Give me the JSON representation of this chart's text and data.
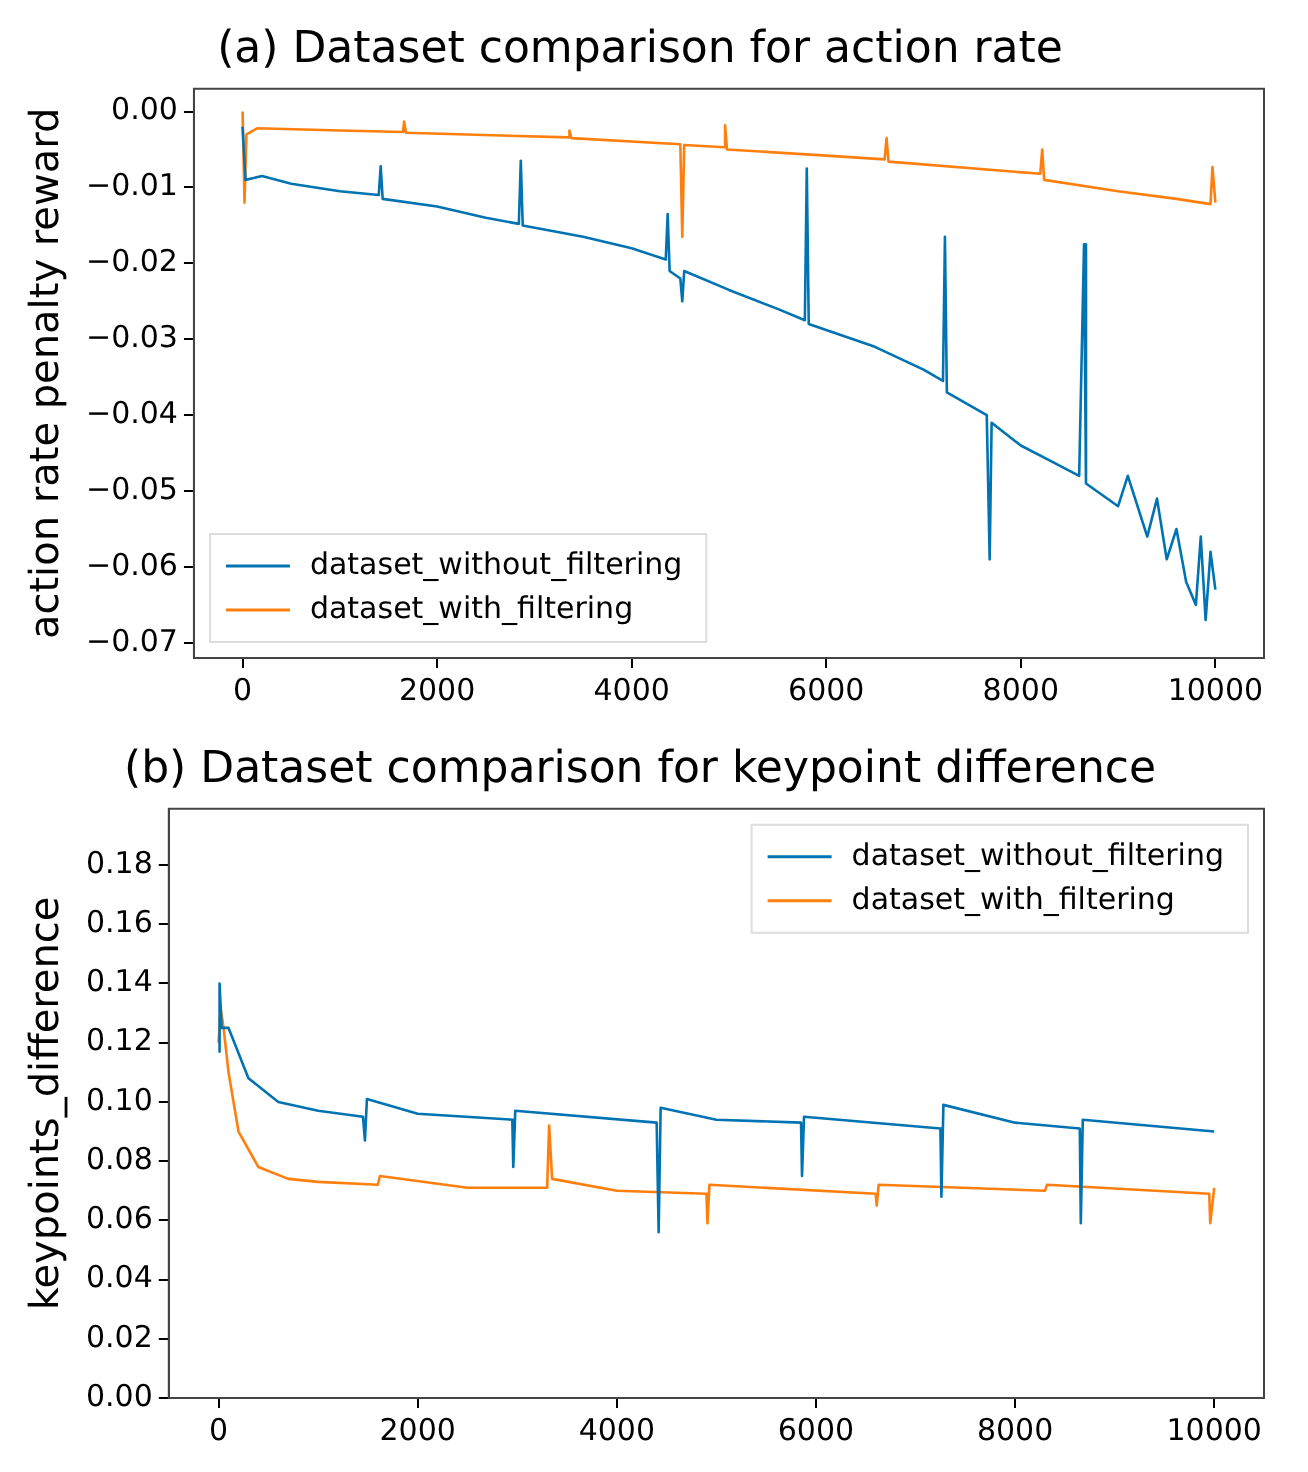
{
  "chart_data": [
    {
      "type": "line",
      "title": "(a) Dataset comparison for action rate",
      "ylabel": "action rate penalty reward",
      "xlim": [
        -500,
        10500
      ],
      "xticks": [
        0,
        2000,
        4000,
        6000,
        8000,
        10000
      ],
      "ylim": [
        -0.072,
        0.003
      ],
      "yticks": [
        {
          "value": -0.07,
          "label": "−0.07"
        },
        {
          "value": -0.06,
          "label": "−0.06"
        },
        {
          "value": -0.05,
          "label": "−0.05"
        },
        {
          "value": -0.04,
          "label": "−0.04"
        },
        {
          "value": -0.03,
          "label": "−0.03"
        },
        {
          "value": -0.02,
          "label": "−0.02"
        },
        {
          "value": -0.01,
          "label": "−0.01"
        },
        {
          "value": 0,
          "label": "0.00"
        }
      ],
      "grid": false,
      "legend": "bottom left",
      "series": [
        {
          "name": "dataset_without_filtering",
          "color": "#0173b2",
          "x": [
            0,
            30,
            200,
            500,
            1000,
            1400,
            1420,
            1440,
            2000,
            2500,
            2840,
            2860,
            2880,
            3500,
            4000,
            4350,
            4370,
            4390,
            4500,
            4520,
            4540,
            5000,
            5500,
            5780,
            5800,
            5820,
            6500,
            7000,
            7200,
            7220,
            7240,
            7650,
            7680,
            7700,
            8000,
            8300,
            8600,
            8650,
            8670,
            9000,
            9100,
            9300,
            9400,
            9500,
            9600,
            9700,
            9800,
            9850,
            9900,
            9950,
            10000
          ],
          "values": [
            -0.002,
            -0.009,
            -0.0085,
            -0.0095,
            -0.0105,
            -0.011,
            -0.0072,
            -0.0115,
            -0.0125,
            -0.014,
            -0.0148,
            -0.0065,
            -0.015,
            -0.0165,
            -0.018,
            -0.0195,
            -0.0135,
            -0.021,
            -0.022,
            -0.025,
            -0.021,
            -0.0235,
            -0.026,
            -0.0275,
            -0.0075,
            -0.028,
            -0.031,
            -0.034,
            -0.0355,
            -0.0165,
            -0.037,
            -0.04,
            -0.059,
            -0.041,
            -0.044,
            -0.046,
            -0.048,
            -0.0175,
            -0.049,
            -0.052,
            -0.048,
            -0.056,
            -0.051,
            -0.059,
            -0.055,
            -0.062,
            -0.065,
            -0.056,
            -0.067,
            -0.058,
            -0.063
          ]
        },
        {
          "name": "dataset_with_filtering",
          "color": "#ff7f0e",
          "x": [
            0,
            20,
            40,
            150,
            1000,
            1650,
            1660,
            1680,
            3350,
            3360,
            3380,
            4500,
            4520,
            4540,
            4950,
            4960,
            4980,
            6000,
            6600,
            6620,
            6640,
            8200,
            8220,
            8240,
            9000,
            9600,
            9950,
            9970,
            10000
          ],
          "values": [
            0.0,
            -0.012,
            -0.003,
            -0.0022,
            -0.0025,
            -0.0027,
            -0.0013,
            -0.0028,
            -0.0034,
            -0.0025,
            -0.0035,
            -0.0043,
            -0.0165,
            -0.0044,
            -0.0047,
            -0.0018,
            -0.005,
            -0.0058,
            -0.0063,
            -0.0035,
            -0.0066,
            -0.0082,
            -0.005,
            -0.009,
            -0.0105,
            -0.0115,
            -0.0122,
            -0.0073,
            -0.012
          ]
        }
      ]
    },
    {
      "type": "line",
      "title": "(b) Dataset comparison for keypoint difference",
      "ylabel": "keypoints_difference",
      "xlim": [
        -500,
        10500
      ],
      "xticks": [
        0,
        2000,
        4000,
        6000,
        8000,
        10000
      ],
      "ylim": [
        0,
        0.199
      ],
      "yticks": [
        {
          "value": 0,
          "label": "0.00"
        },
        {
          "value": 0.02,
          "label": "0.02"
        },
        {
          "value": 0.04,
          "label": "0.04"
        },
        {
          "value": 0.06,
          "label": "0.06"
        },
        {
          "value": 0.08,
          "label": "0.08"
        },
        {
          "value": 0.1,
          "label": "0.10"
        },
        {
          "value": 0.12,
          "label": "0.12"
        },
        {
          "value": 0.14,
          "label": "0.14"
        },
        {
          "value": 0.16,
          "label": "0.16"
        },
        {
          "value": 0.18,
          "label": "0.18"
        }
      ],
      "grid": false,
      "legend": "top right",
      "series": [
        {
          "name": "dataset_without_filtering",
          "color": "#0173b2",
          "x": [
            0,
            10,
            30,
            100,
            300,
            600,
            1000,
            1450,
            1470,
            1490,
            2000,
            2950,
            2960,
            2980,
            4400,
            4420,
            4440,
            5000,
            5850,
            5860,
            5880,
            7250,
            7260,
            7280,
            8000,
            8650,
            8660,
            8680,
            10000
          ],
          "values": [
            0.117,
            0.14,
            0.125,
            0.125,
            0.108,
            0.1,
            0.097,
            0.095,
            0.087,
            0.101,
            0.096,
            0.094,
            0.078,
            0.097,
            0.093,
            0.056,
            0.098,
            0.094,
            0.093,
            0.075,
            0.095,
            0.091,
            0.068,
            0.099,
            0.093,
            0.091,
            0.059,
            0.094,
            0.09
          ]
        },
        {
          "name": "dataset_with_filtering",
          "color": "#ff7f0e",
          "x": [
            0,
            20,
            50,
            100,
            200,
            400,
            700,
            1000,
            1600,
            1620,
            2500,
            3300,
            3320,
            3350,
            4000,
            4900,
            4910,
            4930,
            6600,
            6610,
            6630,
            8300,
            8320,
            9950,
            9960,
            10000
          ],
          "values": [
            0.12,
            0.132,
            0.125,
            0.11,
            0.09,
            0.078,
            0.074,
            0.073,
            0.072,
            0.075,
            0.071,
            0.071,
            0.092,
            0.074,
            0.07,
            0.069,
            0.059,
            0.072,
            0.069,
            0.065,
            0.072,
            0.07,
            0.072,
            0.069,
            0.059,
            0.071
          ]
        }
      ]
    }
  ]
}
